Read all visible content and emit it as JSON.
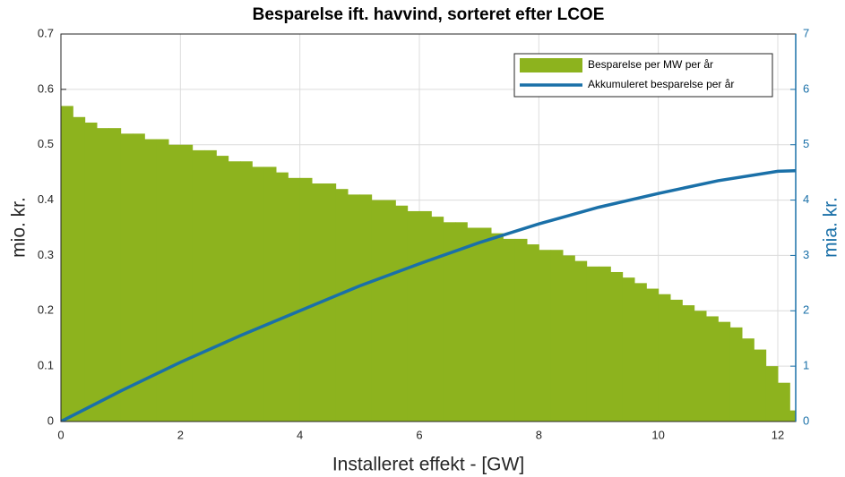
{
  "chart_data": {
    "type": "bar",
    "title": "Besparelse ift. havvind, sorteret efter LCOE",
    "xlabel": "Installeret effekt - [GW]",
    "ylabel": "mio. kr.",
    "y2label": "mia. kr.",
    "xlim": [
      0,
      12.3
    ],
    "ylim": [
      0,
      0.7
    ],
    "y2lim": [
      0,
      7
    ],
    "xticks": [
      0,
      2,
      4,
      6,
      8,
      10,
      12
    ],
    "yticks": [
      0,
      0.1,
      0.2,
      0.3,
      0.4,
      0.5,
      0.6,
      0.7
    ],
    "y2ticks": [
      0,
      1,
      2,
      3,
      4,
      5,
      6,
      7
    ],
    "grid": true,
    "legend": "northeast",
    "series": [
      {
        "name": "Besparelse per MW per år",
        "color": "#8db31e",
        "type": "bar",
        "x": [
          0.1,
          0.3,
          0.5,
          0.7,
          0.9,
          1.1,
          1.3,
          1.5,
          1.7,
          1.9,
          2.1,
          2.3,
          2.5,
          2.7,
          2.9,
          3.1,
          3.3,
          3.5,
          3.7,
          3.9,
          4.1,
          4.3,
          4.5,
          4.7,
          4.9,
          5.1,
          5.3,
          5.5,
          5.7,
          5.9,
          6.1,
          6.3,
          6.5,
          6.7,
          6.9,
          7.1,
          7.3,
          7.5,
          7.7,
          7.9,
          8.1,
          8.3,
          8.5,
          8.7,
          8.9,
          9.1,
          9.3,
          9.5,
          9.7,
          9.9,
          10.1,
          10.3,
          10.5,
          10.7,
          10.9,
          11.1,
          11.3,
          11.5,
          11.7,
          11.9,
          12.1,
          12.3
        ],
        "values": [
          0.57,
          0.55,
          0.54,
          0.53,
          0.53,
          0.52,
          0.52,
          0.51,
          0.51,
          0.5,
          0.5,
          0.49,
          0.49,
          0.48,
          0.47,
          0.47,
          0.46,
          0.46,
          0.45,
          0.44,
          0.44,
          0.43,
          0.43,
          0.42,
          0.41,
          0.41,
          0.4,
          0.4,
          0.39,
          0.38,
          0.38,
          0.37,
          0.36,
          0.36,
          0.35,
          0.35,
          0.34,
          0.33,
          0.33,
          0.32,
          0.31,
          0.31,
          0.3,
          0.29,
          0.28,
          0.28,
          0.27,
          0.26,
          0.25,
          0.24,
          0.23,
          0.22,
          0.21,
          0.2,
          0.19,
          0.18,
          0.17,
          0.15,
          0.13,
          0.1,
          0.07,
          0.02
        ]
      },
      {
        "name": "Akkumuleret besparelse per år",
        "color": "#1a70a8",
        "type": "line",
        "axis": "y2",
        "x": [
          0,
          1,
          2,
          3,
          4,
          5,
          6,
          7,
          8,
          9,
          10,
          11,
          12,
          12.3
        ],
        "values": [
          0,
          0.55,
          1.07,
          1.55,
          2.0,
          2.45,
          2.85,
          3.23,
          3.57,
          3.87,
          4.12,
          4.35,
          4.52,
          4.53
        ]
      }
    ]
  }
}
